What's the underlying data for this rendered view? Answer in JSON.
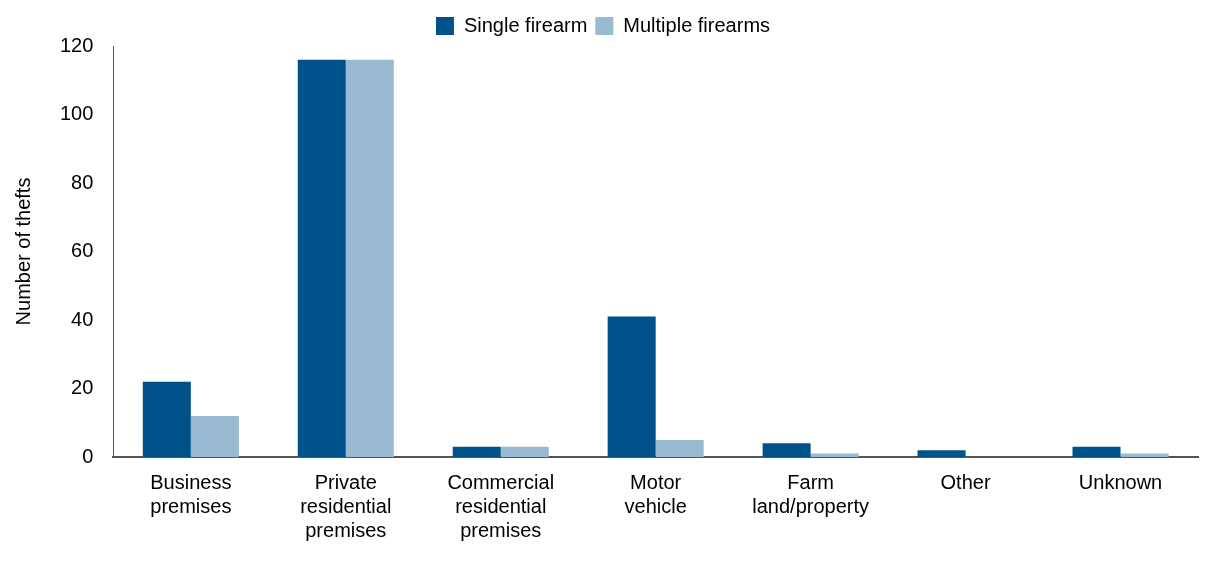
{
  "chart_data": {
    "type": "bar",
    "ylabel": "Number of thefts",
    "categories": [
      "Business premises",
      "Private residential premises",
      "Commercial residential premises",
      "Motor vehicle",
      "Farm land/property",
      "Other",
      "Unknown"
    ],
    "series": [
      {
        "name": "Single firearm",
        "color": "#00538a",
        "values": [
          22,
          116,
          3,
          41,
          4,
          2,
          3
        ]
      },
      {
        "name": "Multiple firearms",
        "color": "#99bbd1",
        "values": [
          12,
          116,
          3,
          5,
          1,
          0,
          1
        ]
      }
    ],
    "ylim": [
      0,
      120
    ],
    "yticks": [
      0,
      20,
      40,
      60,
      80,
      100,
      120
    ],
    "grid": false,
    "legend": "top"
  }
}
